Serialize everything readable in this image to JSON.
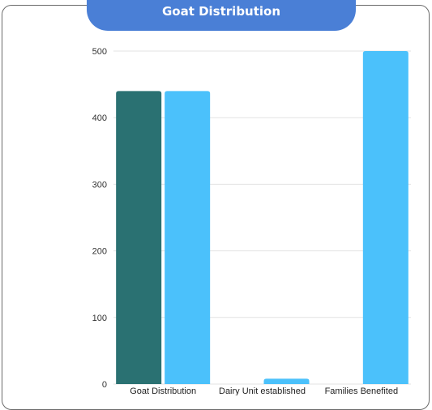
{
  "chart_data": {
    "type": "bar",
    "title": "Goat Distribution",
    "categories": [
      "Goat Distribution",
      "Dairy Unit established",
      "Families Benefited"
    ],
    "series": [
      {
        "values": [
          440,
          null,
          null
        ],
        "color": "#2a7172"
      },
      {
        "values": [
          440,
          8,
          500
        ],
        "color": "#4bc1fb"
      }
    ],
    "ylim": [
      0,
      500
    ],
    "yticks": [
      0,
      100,
      200,
      300,
      400,
      500
    ],
    "grid": true,
    "legend": "none"
  },
  "colors": {
    "title_background": "#4a7fd6",
    "title_text": "#ffffff"
  }
}
